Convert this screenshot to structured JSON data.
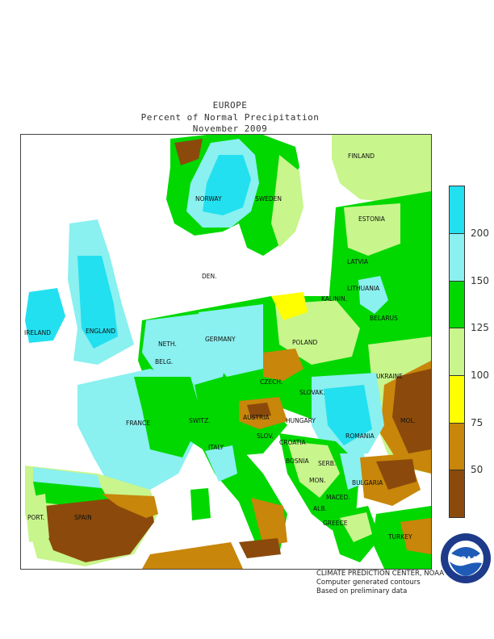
{
  "title": {
    "line1": "EUROPE",
    "line2": "Percent of Normal Precipitation",
    "line3": "November 2009"
  },
  "legend": {
    "colors": [
      "#8b4a0c",
      "#c8860a",
      "#ffff00",
      "#c8f58c",
      "#00d800",
      "#8af0f0",
      "#22e0f0"
    ],
    "ticks": [
      "50",
      "75",
      "100",
      "125",
      "150",
      "200"
    ]
  },
  "map": {
    "labels": {
      "finland": "FINLAND",
      "norway": "NORWAY",
      "sweden": "SWEDEN",
      "estonia": "ESTONIA",
      "latvia": "LATVIA",
      "lithuania": "LITHUANIA",
      "kalinin": "KALININ.",
      "belarus": "BELARUS",
      "ireland": "IRELAND",
      "england": "ENGLAND",
      "neth": "NETH.",
      "germany": "GERMANY",
      "poland": "POLAND",
      "ukraine": "UKRAINE",
      "belg": "BELG.",
      "czech": "CZECH.",
      "slovak": "SLOVAK.",
      "mol": "MOL.",
      "france": "FRANCE",
      "switz": "SWITZ.",
      "austria": "AUSTRIA",
      "hungary": "HUNGARY",
      "romania": "ROMANIA",
      "slov": "SLOV.",
      "croatia": "CROATIA",
      "italy": "ITALY",
      "bosnia": "BOSNIA",
      "serb": "SERB.",
      "bulgaria": "BULGARIA",
      "mon": "MON.",
      "maced": "MACED.",
      "alb": "ALB.",
      "greece": "GREECE",
      "turkey": "TURKEY",
      "port": "PORT.",
      "spain": "SPAIN",
      "den": "DEN."
    }
  },
  "credits": {
    "line1": "CLIMATE PREDICTION CENTER, NOAA",
    "line2": "Computer generated contours",
    "line3": "Based on preliminary data"
  },
  "logo": {
    "text": "NOAA",
    "ring_text": "NATIONAL OCEANIC AND ATMOSPHERIC ADMINISTRATION · U.S. DEPARTMENT OF COMMERCE"
  }
}
